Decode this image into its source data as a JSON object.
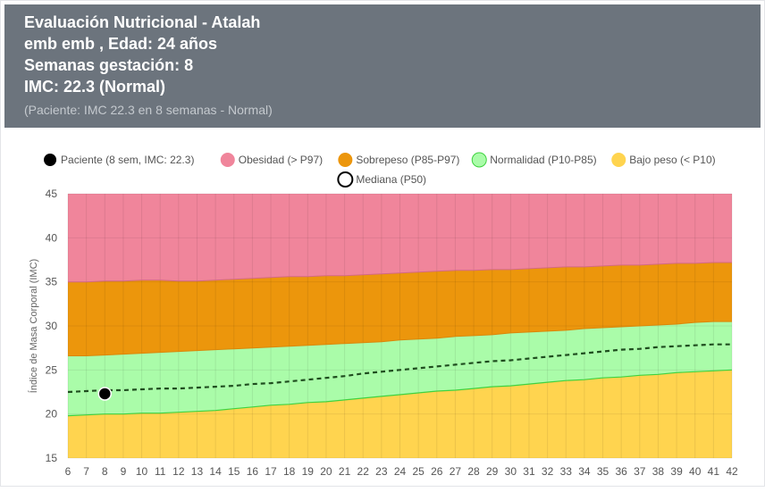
{
  "header": {
    "title": "Evaluación Nutricional - Atalah",
    "patient_line": "emb emb , Edad: 24 años",
    "weeks_line": "Semanas gestación: 8",
    "bmi_line": "IMC: 22.3 (Normal)",
    "subtitle": "(Paciente: IMC 22.3 en 8 semanas - Normal)"
  },
  "colors": {
    "header_bg": "#6c747d",
    "obesidad": "#f0859b",
    "sobrepeso": "#ec960c",
    "normalidad": "#aafca9",
    "normalidad_line": "#3fd23f",
    "bajo_peso": "#ffd44f",
    "mediana": "#1f4d1f",
    "paciente": "#000000"
  },
  "chart_data": {
    "type": "area",
    "ylabel": "Índice de Masa Corporal (IMC)",
    "xlabel": "",
    "ylim": [
      15,
      45
    ],
    "yticks": [
      15,
      20,
      25,
      30,
      35,
      40,
      45
    ],
    "x": [
      6,
      7,
      8,
      9,
      10,
      11,
      12,
      13,
      14,
      15,
      16,
      17,
      18,
      19,
      20,
      21,
      22,
      23,
      24,
      25,
      26,
      27,
      28,
      29,
      30,
      31,
      32,
      33,
      34,
      35,
      36,
      37,
      38,
      39,
      40,
      41,
      42
    ],
    "legend": [
      {
        "key": "paciente",
        "label": "Paciente (8 sem, IMC: 22.3)",
        "marker": "dot"
      },
      {
        "key": "obesidad",
        "label": "Obesidad (> P97)",
        "marker": "fill"
      },
      {
        "key": "sobrepeso",
        "label": "Sobrepeso (P85-P97)",
        "marker": "fill"
      },
      {
        "key": "normalidad",
        "label": "Normalidad (P10-P85)",
        "marker": "fill"
      },
      {
        "key": "bajo_peso",
        "label": "Bajo peso (< P10)",
        "marker": "fill"
      },
      {
        "key": "mediana",
        "label": "Mediana (P50)",
        "marker": "ring"
      }
    ],
    "series": [
      {
        "key": "p97",
        "values": [
          35.0,
          35.0,
          35.1,
          35.1,
          35.2,
          35.2,
          35.1,
          35.1,
          35.2,
          35.3,
          35.4,
          35.5,
          35.6,
          35.6,
          35.7,
          35.7,
          35.8,
          35.9,
          36.0,
          36.1,
          36.2,
          36.3,
          36.3,
          36.4,
          36.4,
          36.5,
          36.6,
          36.7,
          36.7,
          36.8,
          36.9,
          36.9,
          37.0,
          37.1,
          37.1,
          37.2,
          37.2
        ]
      },
      {
        "key": "p85",
        "values": [
          26.6,
          26.6,
          26.7,
          26.8,
          26.9,
          27.0,
          27.1,
          27.2,
          27.3,
          27.4,
          27.5,
          27.6,
          27.7,
          27.8,
          27.9,
          28.0,
          28.1,
          28.2,
          28.4,
          28.5,
          28.6,
          28.8,
          28.9,
          29.0,
          29.2,
          29.3,
          29.4,
          29.5,
          29.7,
          29.8,
          29.9,
          30.0,
          30.1,
          30.2,
          30.4,
          30.5,
          30.5
        ]
      },
      {
        "key": "p50",
        "values": [
          22.5,
          22.6,
          22.7,
          22.7,
          22.8,
          22.9,
          22.9,
          23.0,
          23.1,
          23.2,
          23.4,
          23.5,
          23.7,
          23.9,
          24.1,
          24.3,
          24.6,
          24.8,
          25.0,
          25.2,
          25.4,
          25.6,
          25.8,
          26.0,
          26.1,
          26.3,
          26.5,
          26.7,
          26.9,
          27.1,
          27.3,
          27.4,
          27.6,
          27.7,
          27.8,
          27.9,
          27.9
        ]
      },
      {
        "key": "p10",
        "values": [
          19.8,
          19.9,
          20.0,
          20.0,
          20.1,
          20.1,
          20.2,
          20.3,
          20.4,
          20.6,
          20.8,
          21.0,
          21.1,
          21.3,
          21.4,
          21.6,
          21.8,
          22.0,
          22.2,
          22.4,
          22.6,
          22.7,
          22.9,
          23.1,
          23.2,
          23.4,
          23.6,
          23.8,
          23.9,
          24.1,
          24.2,
          24.4,
          24.5,
          24.7,
          24.8,
          24.9,
          25.0
        ]
      }
    ],
    "patient": {
      "week": 8,
      "imc": 22.3
    },
    "grid": true,
    "legend_position": "top"
  }
}
